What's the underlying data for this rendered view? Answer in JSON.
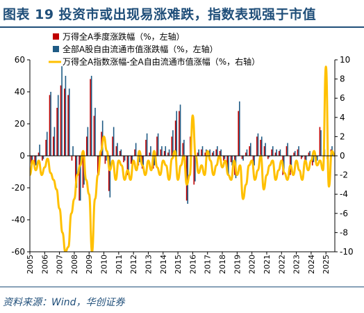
{
  "header": {
    "title": "图表 19   投资市或出现易涨难跌，指数表现强于市值"
  },
  "footer": {
    "source": "资料来源：Wind，华创证券"
  },
  "colors": {
    "red": "#c00000",
    "blue": "#1f5b85",
    "gold": "#ffc000",
    "axis": "#000000",
    "title": "#1f4e79"
  },
  "chart_data": {
    "type": "bar",
    "title": "",
    "x_tick_labels": [
      "2005",
      "2006",
      "2007",
      "2008",
      "2009",
      "2010",
      "2011",
      "2012",
      "2013",
      "2014",
      "2015",
      "2016",
      "2017",
      "2018",
      "2019",
      "2020",
      "2021",
      "2022",
      "2023",
      "2024",
      "2025"
    ],
    "x_range": [
      2005,
      2025.6
    ],
    "y_left": {
      "range": [
        -60,
        60
      ],
      "ticks": [
        -60,
        -40,
        -20,
        0,
        20,
        40,
        60
      ]
    },
    "y_right": {
      "range": [
        -10,
        10
      ],
      "ticks": [
        -10,
        -8,
        -6,
        -4,
        -2,
        0,
        2,
        4,
        6,
        8,
        10
      ]
    },
    "legend": {
      "position": "top-left"
    },
    "series": [
      {
        "name": "万得全A季度涨跌幅（%，左轴）",
        "axis": "left",
        "type": "bar",
        "color": "#c00000",
        "x": [
          2005.125,
          2005.375,
          2005.625,
          2005.875,
          2006.125,
          2006.375,
          2006.625,
          2006.875,
          2007.125,
          2007.375,
          2007.625,
          2007.875,
          2008.125,
          2008.375,
          2008.625,
          2008.875,
          2009.125,
          2009.375,
          2009.625,
          2009.875,
          2010.125,
          2010.375,
          2010.625,
          2010.875,
          2011.125,
          2011.375,
          2011.625,
          2011.875,
          2012.125,
          2012.375,
          2012.625,
          2012.875,
          2013.125,
          2013.375,
          2013.625,
          2013.875,
          2014.125,
          2014.375,
          2014.625,
          2014.875,
          2015.125,
          2015.375,
          2015.625,
          2015.875,
          2016.125,
          2016.375,
          2016.625,
          2016.875,
          2017.125,
          2017.375,
          2017.625,
          2017.875,
          2018.125,
          2018.375,
          2018.625,
          2018.875,
          2019.125,
          2019.375,
          2019.625,
          2019.875,
          2020.125,
          2020.375,
          2020.625,
          2020.875,
          2021.125,
          2021.375,
          2021.625,
          2021.875,
          2022.125,
          2022.375,
          2022.625,
          2022.875,
          2023.125,
          2023.375,
          2023.625,
          2023.875,
          2024.125,
          2024.375,
          2024.625,
          2024.875,
          2025.125,
          2025.375
        ],
        "values": [
          -5,
          -8,
          2,
          -3,
          10,
          38,
          12,
          30,
          44,
          42,
          38,
          -3,
          -18,
          -28,
          -20,
          12,
          48,
          25,
          -12,
          15,
          -5,
          -22,
          12,
          6,
          3,
          -4,
          -12,
          -5,
          4,
          -6,
          -8,
          10,
          2,
          -8,
          12,
          4,
          3,
          2,
          12,
          22,
          28,
          8,
          -28,
          12,
          -18,
          2,
          4,
          2,
          3,
          2,
          4,
          3,
          -3,
          -10,
          -4,
          -12,
          28,
          -2,
          2,
          6,
          -8,
          12,
          10,
          6,
          -2,
          4,
          2,
          3,
          -12,
          6,
          -12,
          2,
          4,
          -2,
          -4,
          2,
          -6,
          -4,
          18,
          2,
          -2,
          4
        ]
      },
      {
        "name": "全部A股自由流通市值涨跌幅（%，左轴）",
        "axis": "left",
        "type": "bar",
        "color": "#1f5b85",
        "x": [
          2005.125,
          2005.375,
          2005.625,
          2005.875,
          2006.125,
          2006.375,
          2006.625,
          2006.875,
          2007.125,
          2007.375,
          2007.625,
          2007.875,
          2008.125,
          2008.375,
          2008.625,
          2008.875,
          2009.125,
          2009.375,
          2009.625,
          2009.875,
          2010.125,
          2010.375,
          2010.625,
          2010.875,
          2011.125,
          2011.375,
          2011.625,
          2011.875,
          2012.125,
          2012.375,
          2012.625,
          2012.875,
          2013.125,
          2013.375,
          2013.625,
          2013.875,
          2014.125,
          2014.375,
          2014.625,
          2014.875,
          2015.125,
          2015.375,
          2015.625,
          2015.875,
          2016.125,
          2016.375,
          2016.625,
          2016.875,
          2017.125,
          2017.375,
          2017.625,
          2017.875,
          2018.125,
          2018.375,
          2018.625,
          2018.875,
          2019.125,
          2019.375,
          2019.625,
          2019.875,
          2020.125,
          2020.375,
          2020.625,
          2020.875,
          2021.125,
          2021.375,
          2021.625,
          2021.875,
          2022.125,
          2022.375,
          2022.625,
          2022.875,
          2023.125,
          2023.375,
          2023.625,
          2023.875,
          2024.125,
          2024.375,
          2024.625,
          2024.875,
          2025.125,
          2025.375
        ],
        "values": [
          -4,
          -6,
          7,
          -2,
          15,
          40,
          18,
          38,
          56,
          50,
          42,
          6,
          -20,
          -28,
          -18,
          18,
          50,
          30,
          -12,
          22,
          -3,
          -26,
          18,
          8,
          4,
          -3,
          -10,
          -4,
          8,
          -4,
          -6,
          14,
          6,
          -6,
          14,
          6,
          6,
          4,
          16,
          28,
          32,
          10,
          -30,
          16,
          -16,
          4,
          6,
          4,
          4,
          3,
          6,
          4,
          -2,
          -12,
          -6,
          -14,
          34,
          -3,
          4,
          8,
          -6,
          14,
          12,
          8,
          -1,
          6,
          4,
          4,
          -10,
          8,
          -10,
          3,
          6,
          -1,
          -3,
          3,
          -4,
          -3,
          16,
          4,
          -1,
          6
        ]
      },
      {
        "name": "万得全A指数涨幅-全A自由流通市值涨幅（%，右轴）",
        "axis": "right",
        "type": "line",
        "color": "#ffc000",
        "x": [
          2005.0,
          2005.2,
          2005.4,
          2005.6,
          2005.8,
          2006.0,
          2006.2,
          2006.4,
          2006.6,
          2006.8,
          2007.0,
          2007.2,
          2007.4,
          2007.6,
          2007.8,
          2008.0,
          2008.2,
          2008.4,
          2008.6,
          2008.8,
          2009.0,
          2009.2,
          2009.4,
          2009.6,
          2009.8,
          2010.0,
          2010.2,
          2010.4,
          2010.6,
          2010.8,
          2011.0,
          2011.2,
          2011.4,
          2011.6,
          2011.8,
          2012.0,
          2012.2,
          2012.4,
          2012.6,
          2012.8,
          2013.0,
          2013.2,
          2013.4,
          2013.6,
          2013.8,
          2014.0,
          2014.2,
          2014.4,
          2014.6,
          2014.8,
          2015.0,
          2015.2,
          2015.4,
          2015.6,
          2015.8,
          2016.0,
          2016.2,
          2016.4,
          2016.6,
          2016.8,
          2017.0,
          2017.2,
          2017.4,
          2017.6,
          2017.8,
          2018.0,
          2018.2,
          2018.4,
          2018.6,
          2018.8,
          2019.0,
          2019.2,
          2019.4,
          2019.6,
          2019.8,
          2020.0,
          2020.2,
          2020.4,
          2020.6,
          2020.8,
          2021.0,
          2021.2,
          2021.4,
          2021.6,
          2021.8,
          2022.0,
          2022.2,
          2022.4,
          2022.6,
          2022.8,
          2023.0,
          2023.2,
          2023.4,
          2023.6,
          2023.8,
          2024.0,
          2024.2,
          2024.4,
          2024.6,
          2024.8,
          2025.0,
          2025.2,
          2025.4,
          2025.6
        ],
        "values": [
          -2.0,
          -0.5,
          -1.5,
          -0.5,
          -2.0,
          -1.2,
          -0.3,
          -1.8,
          -2.5,
          -3.5,
          -5.5,
          -8.0,
          -10.0,
          -9.5,
          -6.0,
          -4.5,
          -2.0,
          -1.0,
          0.5,
          -2.5,
          -4.0,
          -10.0,
          -4.5,
          -2.0,
          0.5,
          2.0,
          0.5,
          -1.5,
          -0.5,
          -2.5,
          -0.5,
          -1.0,
          -2.5,
          -1.5,
          -2.5,
          -0.5,
          -1.5,
          0.5,
          -1.0,
          -2.0,
          -0.5,
          -1.5,
          0.5,
          -1.2,
          -2.0,
          -0.5,
          -1.0,
          -2.5,
          -0.3,
          0.5,
          -2.5,
          -1.0,
          0.0,
          -3.0,
          -2.0,
          4.2,
          0.0,
          -1.8,
          -1.0,
          -2.0,
          0.5,
          -0.5,
          -2.0,
          -1.0,
          0.0,
          -1.2,
          -0.5,
          -2.0,
          -2.5,
          -0.5,
          -2.0,
          -1.0,
          -4.5,
          -3.0,
          -1.0,
          -0.5,
          -2.5,
          -1.5,
          0.0,
          -3.5,
          -2.0,
          -1.0,
          -0.5,
          -2.5,
          -1.5,
          -0.5,
          -1.8,
          -2.5,
          -1.0,
          -2.0,
          -0.5,
          -1.5,
          -2.5,
          -0.5,
          -1.5,
          -0.5,
          0.5,
          -1.0,
          -0.5,
          -1.5,
          9.3,
          -3.2,
          0.5,
          0.0
        ]
      }
    ]
  }
}
